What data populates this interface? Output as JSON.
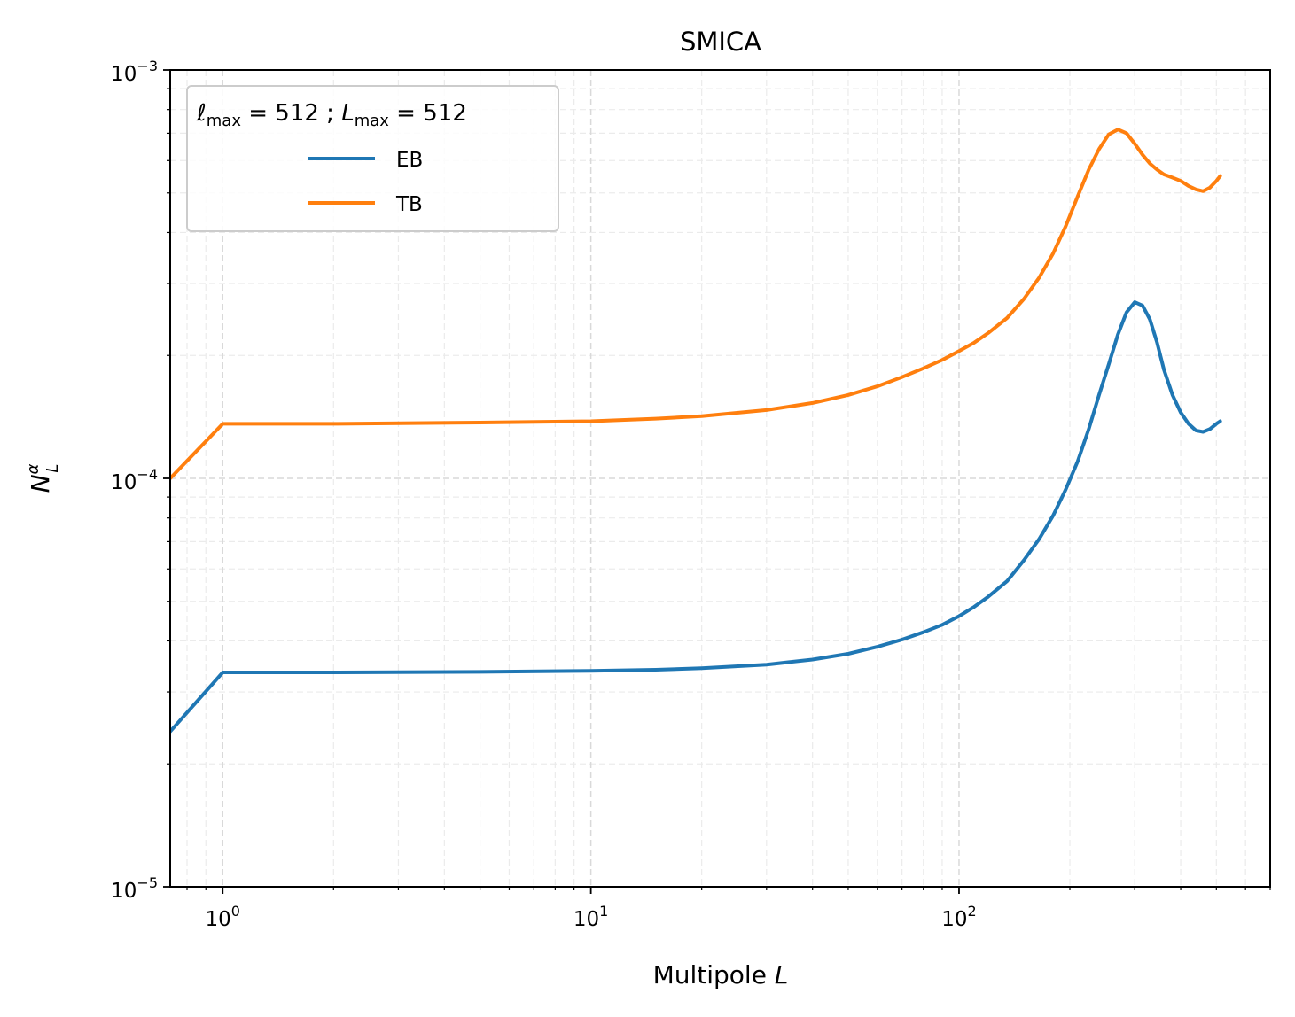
{
  "chart_data": {
    "type": "line",
    "title": "SMICA",
    "xlabel": "Multipole",
    "xlabel_var": "L",
    "ylabel_var": "N",
    "ylabel_sup": "α",
    "ylabel_sub": "L",
    "x_scale": "log",
    "y_scale": "log",
    "xlim": [
      0.72,
      700
    ],
    "ylim": [
      1e-05,
      0.001
    ],
    "x_ticks": [
      {
        "value": 1,
        "base": "10",
        "exp": "0"
      },
      {
        "value": 10,
        "base": "10",
        "exp": "1"
      },
      {
        "value": 100,
        "base": "10",
        "exp": "2"
      }
    ],
    "y_ticks": [
      {
        "value": 1e-05,
        "base": "10",
        "exp": "−5"
      },
      {
        "value": 0.0001,
        "base": "10",
        "exp": "−4"
      },
      {
        "value": 0.001,
        "base": "10",
        "exp": "−3"
      }
    ],
    "grid": true,
    "legend": {
      "placement": "top-left",
      "title_parts": {
        "l_sym": "ℓ",
        "l_sub": "max",
        "eq1": " = 512 ; ",
        "L_sym": "L",
        "L_sub": "max",
        "eq2": " = 512"
      }
    },
    "series": [
      {
        "name": "EB",
        "color": "#1f77b4",
        "x": [
          0.72,
          1,
          2,
          5,
          10,
          15,
          20,
          30,
          40,
          50,
          60,
          70,
          80,
          90,
          100,
          110,
          120,
          135,
          150,
          165,
          180,
          195,
          210,
          225,
          240,
          255,
          270,
          285,
          300,
          315,
          330,
          345,
          360,
          380,
          400,
          420,
          440,
          460,
          480,
          500,
          512
        ],
        "values": [
          2.4e-05,
          3.35e-05,
          3.35e-05,
          3.36e-05,
          3.38e-05,
          3.4e-05,
          3.43e-05,
          3.5e-05,
          3.6e-05,
          3.72e-05,
          3.87e-05,
          4.03e-05,
          4.2e-05,
          4.38e-05,
          4.6e-05,
          4.85e-05,
          5.13e-05,
          5.6e-05,
          6.3e-05,
          7.1e-05,
          8.1e-05,
          9.4e-05,
          0.00011,
          0.000132,
          0.00016,
          0.00019,
          0.000225,
          0.000255,
          0.00027,
          0.000265,
          0.000245,
          0.000215,
          0.000185,
          0.00016,
          0.000145,
          0.000136,
          0.000131,
          0.00013,
          0.000132,
          0.000136,
          0.000138
        ]
      },
      {
        "name": "TB",
        "color": "#ff7f0e",
        "x": [
          0.72,
          1,
          2,
          5,
          10,
          15,
          20,
          30,
          40,
          50,
          60,
          70,
          80,
          90,
          100,
          110,
          120,
          135,
          150,
          165,
          180,
          195,
          210,
          225,
          240,
          255,
          270,
          285,
          300,
          315,
          330,
          345,
          360,
          380,
          400,
          420,
          440,
          460,
          480,
          500,
          512
        ],
        "values": [
          0.0001,
          0.000136,
          0.000136,
          0.000137,
          0.000138,
          0.00014,
          0.000142,
          0.000147,
          0.000153,
          0.00016,
          0.000168,
          0.000177,
          0.000186,
          0.000195,
          0.000205,
          0.000215,
          0.000227,
          0.000247,
          0.000275,
          0.00031,
          0.000355,
          0.000415,
          0.00049,
          0.00057,
          0.00064,
          0.000695,
          0.000715,
          0.0007,
          0.00066,
          0.00062,
          0.00059,
          0.00057,
          0.000555,
          0.000545,
          0.000535,
          0.00052,
          0.00051,
          0.000505,
          0.000515,
          0.000535,
          0.00055
        ]
      }
    ]
  }
}
